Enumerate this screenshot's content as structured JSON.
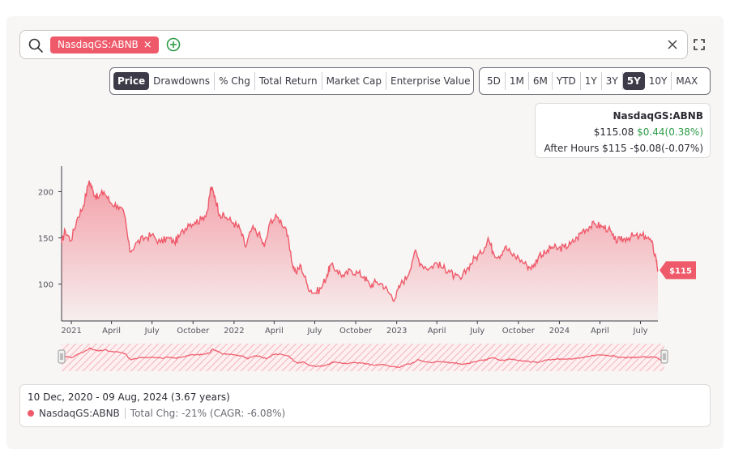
{
  "search": {
    "ticker_chip": "NasdaqGS:ABNB",
    "chip_close": "×"
  },
  "metric_tabs": [
    {
      "label": "Price",
      "active": true
    },
    {
      "label": "Drawdowns",
      "active": false
    },
    {
      "label": "% Chg",
      "active": false
    },
    {
      "label": "Total Return",
      "active": false
    },
    {
      "label": "Market Cap",
      "active": false
    },
    {
      "label": "Enterprise Value",
      "active": false
    }
  ],
  "range_tabs": [
    {
      "label": "5D",
      "active": false
    },
    {
      "label": "1M",
      "active": false
    },
    {
      "label": "6M",
      "active": false
    },
    {
      "label": "YTD",
      "active": false
    },
    {
      "label": "1Y",
      "active": false
    },
    {
      "label": "3Y",
      "active": false
    },
    {
      "label": "5Y",
      "active": true
    },
    {
      "label": "10Y",
      "active": false
    },
    {
      "label": "MAX",
      "active": false
    }
  ],
  "quote": {
    "ticker": "NasdaqGS:ABNB",
    "price": "$115.08",
    "change": "$0.44(0.38%)",
    "after_hours": "After Hours $115 -$0.08(-0.07%)"
  },
  "summary": {
    "date_range": "10 Dec, 2020 - 09 Aug, 2024 (3.67 years)",
    "series_name": "NasdaqGS:ABNB",
    "total_change": "Total Chg: -21% (CAGR: -6.08%)"
  },
  "colors": {
    "accent": "#ef5a6a",
    "positive": "#2e9c48",
    "active_tab": "#3c3b47"
  },
  "chart_data": {
    "type": "area",
    "x_start": "2020-12-10",
    "x_end": "2024-08-09",
    "x_tick_labels": [
      {
        "label": "2021",
        "date": "2021-01-01"
      },
      {
        "label": "April",
        "date": "2021-04-01"
      },
      {
        "label": "July",
        "date": "2021-07-01"
      },
      {
        "label": "October",
        "date": "2021-10-01"
      },
      {
        "label": "2022",
        "date": "2022-01-01"
      },
      {
        "label": "April",
        "date": "2022-04-01"
      },
      {
        "label": "July",
        "date": "2022-07-01"
      },
      {
        "label": "October",
        "date": "2022-10-01"
      },
      {
        "label": "2023",
        "date": "2023-01-01"
      },
      {
        "label": "April",
        "date": "2023-04-01"
      },
      {
        "label": "July",
        "date": "2023-07-01"
      },
      {
        "label": "October",
        "date": "2023-10-01"
      },
      {
        "label": "2024",
        "date": "2024-01-01"
      },
      {
        "label": "April",
        "date": "2024-04-01"
      },
      {
        "label": "July",
        "date": "2024-07-01"
      }
    ],
    "y_ticks": [
      100,
      150,
      200
    ],
    "ylim": [
      60,
      225
    ],
    "last_price_label": "$115",
    "series": [
      {
        "name": "NasdaqGS:ABNB",
        "points": [
          [
            "2020-12-10",
            144
          ],
          [
            "2020-12-18",
            158
          ],
          [
            "2020-12-31",
            147
          ],
          [
            "2021-01-15",
            172
          ],
          [
            "2021-01-28",
            185
          ],
          [
            "2021-02-10",
            212
          ],
          [
            "2021-02-19",
            200
          ],
          [
            "2021-03-01",
            193
          ],
          [
            "2021-03-15",
            200
          ],
          [
            "2021-03-30",
            188
          ],
          [
            "2021-04-15",
            185
          ],
          [
            "2021-04-30",
            175
          ],
          [
            "2021-05-12",
            135
          ],
          [
            "2021-05-28",
            145
          ],
          [
            "2021-06-15",
            150
          ],
          [
            "2021-06-30",
            153
          ],
          [
            "2021-07-20",
            145
          ],
          [
            "2021-08-05",
            150
          ],
          [
            "2021-08-20",
            145
          ],
          [
            "2021-09-01",
            152
          ],
          [
            "2021-09-20",
            165
          ],
          [
            "2021-10-05",
            167
          ],
          [
            "2021-10-20",
            170
          ],
          [
            "2021-11-03",
            180
          ],
          [
            "2021-11-10",
            205
          ],
          [
            "2021-11-19",
            195
          ],
          [
            "2021-11-30",
            175
          ],
          [
            "2021-12-15",
            172
          ],
          [
            "2021-12-31",
            166
          ],
          [
            "2022-01-14",
            160
          ],
          [
            "2022-01-27",
            140
          ],
          [
            "2022-02-10",
            160
          ],
          [
            "2022-02-25",
            155
          ],
          [
            "2022-03-10",
            140
          ],
          [
            "2022-03-25",
            170
          ],
          [
            "2022-04-10",
            172
          ],
          [
            "2022-04-28",
            160
          ],
          [
            "2022-05-10",
            125
          ],
          [
            "2022-05-20",
            112
          ],
          [
            "2022-05-31",
            120
          ],
          [
            "2022-06-15",
            98
          ],
          [
            "2022-06-30",
            90
          ],
          [
            "2022-07-15",
            95
          ],
          [
            "2022-07-29",
            110
          ],
          [
            "2022-08-05",
            120
          ],
          [
            "2022-08-20",
            115
          ],
          [
            "2022-09-05",
            108
          ],
          [
            "2022-09-20",
            115
          ],
          [
            "2022-10-05",
            112
          ],
          [
            "2022-10-20",
            108
          ],
          [
            "2022-11-02",
            98
          ],
          [
            "2022-11-15",
            102
          ],
          [
            "2022-11-30",
            100
          ],
          [
            "2022-12-15",
            90
          ],
          [
            "2022-12-28",
            84
          ],
          [
            "2023-01-10",
            100
          ],
          [
            "2023-01-25",
            108
          ],
          [
            "2023-02-10",
            135
          ],
          [
            "2023-02-24",
            122
          ],
          [
            "2023-03-15",
            117
          ],
          [
            "2023-03-31",
            123
          ],
          [
            "2023-04-15",
            117
          ],
          [
            "2023-04-28",
            115
          ],
          [
            "2023-05-10",
            108
          ],
          [
            "2023-05-25",
            105
          ],
          [
            "2023-06-10",
            118
          ],
          [
            "2023-06-25",
            128
          ],
          [
            "2023-07-10",
            133
          ],
          [
            "2023-07-25",
            150
          ],
          [
            "2023-08-05",
            135
          ],
          [
            "2023-08-18",
            130
          ],
          [
            "2023-09-01",
            140
          ],
          [
            "2023-09-15",
            133
          ],
          [
            "2023-10-02",
            128
          ],
          [
            "2023-10-20",
            120
          ],
          [
            "2023-11-03",
            118
          ],
          [
            "2023-11-17",
            132
          ],
          [
            "2023-11-30",
            133
          ],
          [
            "2023-12-15",
            140
          ],
          [
            "2023-12-29",
            138
          ],
          [
            "2024-01-12",
            140
          ],
          [
            "2024-01-26",
            143
          ],
          [
            "2024-02-10",
            150
          ],
          [
            "2024-02-22",
            158
          ],
          [
            "2024-03-08",
            162
          ],
          [
            "2024-03-22",
            165
          ],
          [
            "2024-04-05",
            162
          ],
          [
            "2024-04-20",
            160
          ],
          [
            "2024-05-03",
            148
          ],
          [
            "2024-05-17",
            147
          ],
          [
            "2024-05-31",
            150
          ],
          [
            "2024-06-14",
            152
          ],
          [
            "2024-06-28",
            151
          ],
          [
            "2024-07-12",
            152
          ],
          [
            "2024-07-25",
            146
          ],
          [
            "2024-08-05",
            128
          ],
          [
            "2024-08-09",
            115
          ]
        ]
      }
    ]
  }
}
